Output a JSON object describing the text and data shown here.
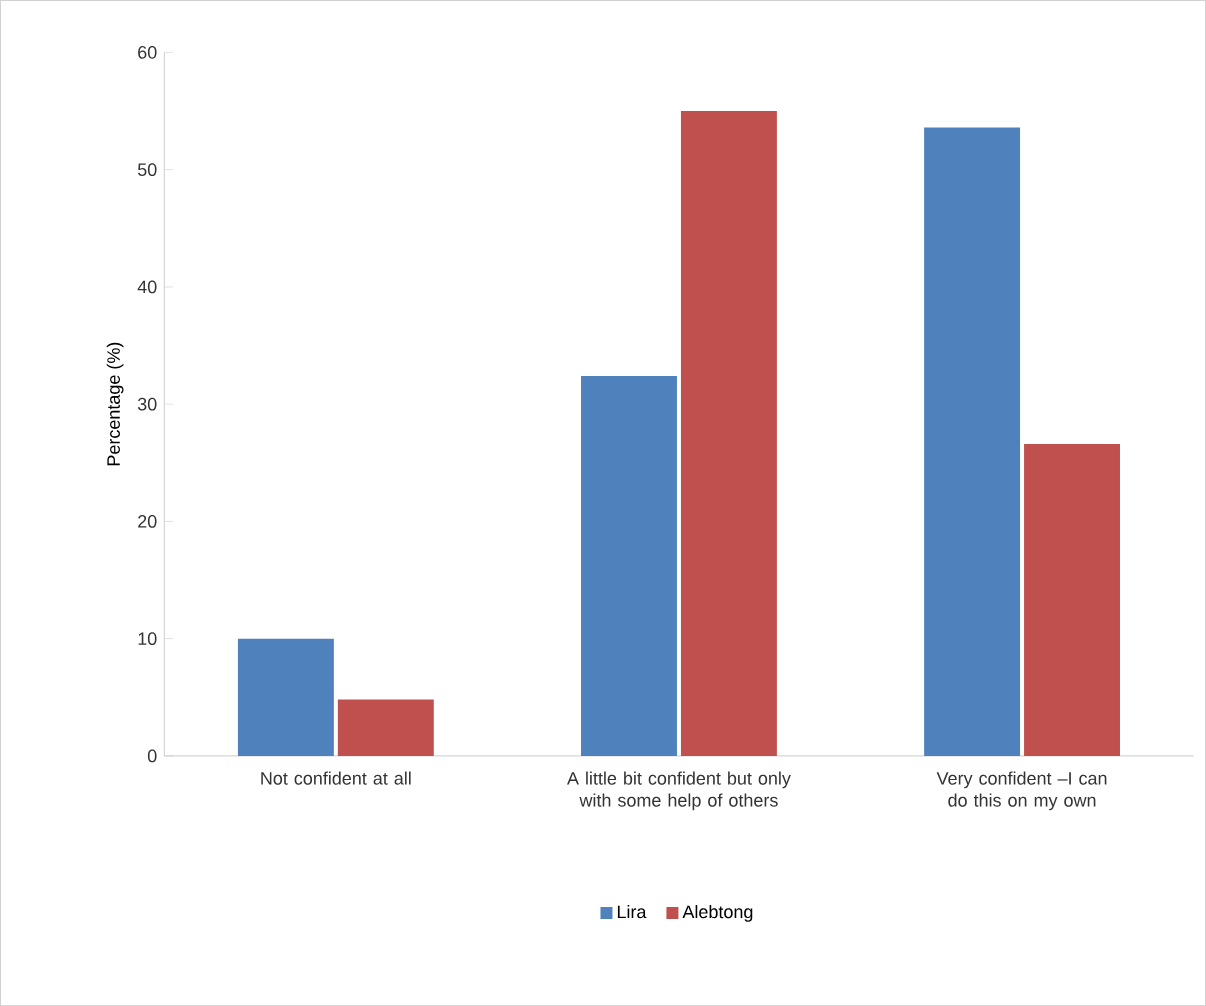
{
  "chart_data": {
    "type": "bar",
    "ylabel": "Percentage (%)",
    "categories": [
      "Not confident at all",
      "A little bit confident but only with some help of others",
      "Very confident –I can do this on my own"
    ],
    "series": [
      {
        "name": "Lira",
        "color": "#4f81bd",
        "values": [
          10.0,
          32.4,
          53.6
        ]
      },
      {
        "name": "Alebtong",
        "color": "#c0504d",
        "values": [
          4.8,
          55.0,
          26.6
        ]
      }
    ],
    "ylim": [
      0,
      60
    ],
    "yticks": [
      0,
      10,
      20,
      30,
      40,
      50,
      60
    ],
    "legend": "bottom",
    "grid": false
  }
}
